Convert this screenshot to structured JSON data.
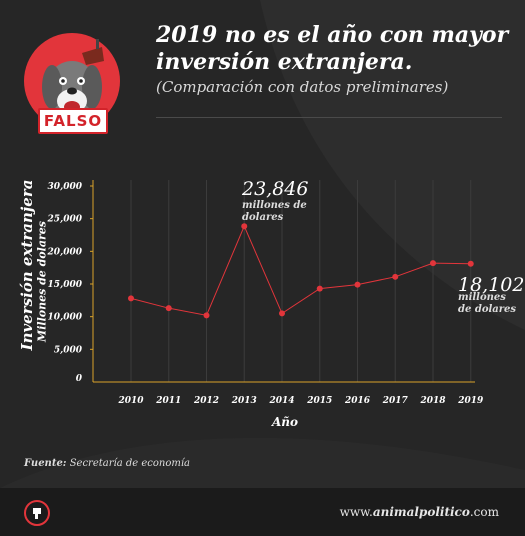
{
  "badge": {
    "label": "FALSO"
  },
  "header": {
    "title": "2019 no es el año con mayor inversión extranjera.",
    "subtitle": "(Comparación con datos preliminares)"
  },
  "axis_titles": {
    "y": "Inversión extranjera",
    "y_sub": "Millones de dolares",
    "x": "Año"
  },
  "annotations": [
    {
      "value": "23,846",
      "unit": "millones de dolares",
      "year": 2013
    },
    {
      "value": "18,102",
      "unit": "millones de dolares",
      "year": 2019
    }
  ],
  "source": {
    "label": "Fuente:",
    "text": "Secretaría de economía"
  },
  "footer": {
    "url_prefix": "www.",
    "url_brand": "animalpolitico",
    "url_suffix": ".com"
  },
  "colors": {
    "accent": "#e2353b",
    "background": "#262626",
    "footer": "#1b1b1b"
  },
  "chart_data": {
    "type": "line",
    "x": [
      2010,
      2011,
      2012,
      2013,
      2014,
      2015,
      2016,
      2017,
      2018,
      2019
    ],
    "series": [
      {
        "values": [
          12800,
          11300,
          10200,
          23846,
          10500,
          14300,
          14900,
          16100,
          18200,
          18102
        ]
      }
    ],
    "yticks": [
      "0",
      "5,000",
      "10,000",
      "15,000",
      "20,000",
      "25,000",
      "30,000"
    ],
    "ylim": [
      0,
      30000
    ],
    "xlabel": "Año",
    "ylabel": "Inversión extranjera",
    "grid": "vertical"
  }
}
